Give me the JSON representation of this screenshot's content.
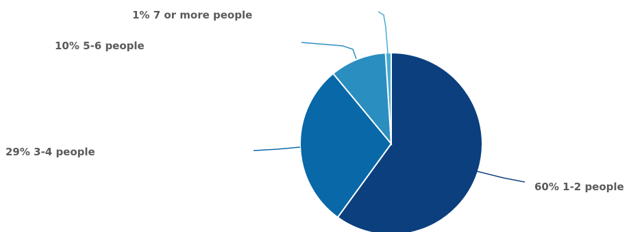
{
  "chart_data": {
    "type": "pie",
    "title": "",
    "slices": [
      {
        "label": "1-2 people",
        "value": 60,
        "display": "60% 1-2 people",
        "color": "#0b3f7e"
      },
      {
        "label": "3-4 people",
        "value": 29,
        "display": "29% 3-4 people",
        "color": "#0868a8"
      },
      {
        "label": "5-6 people",
        "value": 10,
        "display": "10% 5-6 people",
        "color": "#2b8ec0"
      },
      {
        "label": "7 or more people",
        "value": 1,
        "display": "1% 7 or more people",
        "color": "#48acd4"
      }
    ]
  },
  "colors": {
    "label_text": "#5a5a5a",
    "background": "#ffffff"
  }
}
